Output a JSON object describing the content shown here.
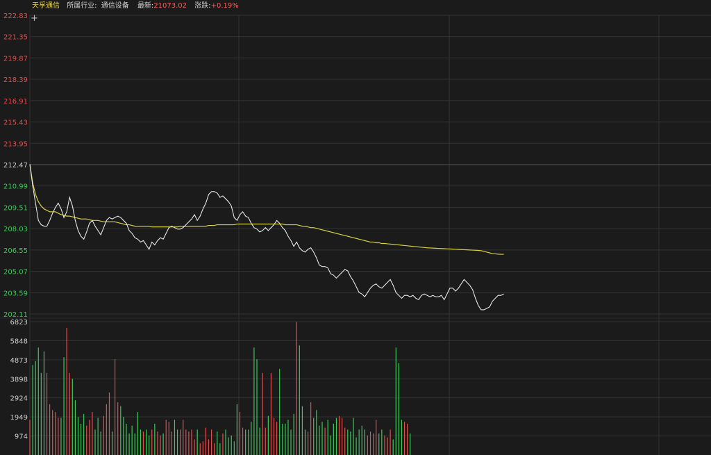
{
  "header": {
    "stock_name": "天孚通信",
    "industry_label": "所属行业:",
    "industry_value": "通信设备",
    "latest_label": "最新:",
    "latest_value": "21073.02",
    "change_label": "涨跌:",
    "change_value": "+0.19%"
  },
  "colors": {
    "background": "#1b1b1b",
    "grid": "#333333",
    "price_line": "#e8e8e8",
    "avg_line": "#d8d23a",
    "up": "#e05050",
    "down": "#3fc85c",
    "neutral_text": "#cfcfcf",
    "name_text": "#e8d44a"
  },
  "chart_data": [
    {
      "type": "line",
      "name": "intraday-price",
      "y_ticks": [
        "222.83",
        "221.35",
        "219.87",
        "218.39",
        "216.91",
        "215.43",
        "213.95",
        "212.47",
        "210.99",
        "209.51",
        "208.03",
        "206.55",
        "205.07",
        "203.59",
        "202.11"
      ],
      "ylim": [
        202.11,
        222.83
      ],
      "prev_close": 212.47,
      "x_count": 241,
      "series": [
        {
          "values": [
            212.5,
            211.0,
            209.8,
            208.6,
            208.3,
            208.2,
            208.2,
            208.6,
            209.1,
            209.5,
            209.8,
            209.4,
            208.8,
            209.2,
            210.2,
            209.6,
            208.6,
            207.9,
            207.5,
            207.3,
            207.8,
            208.4,
            208.6,
            208.2,
            207.9,
            207.6,
            208.1,
            208.6,
            208.8,
            208.7,
            208.8,
            208.9,
            208.8,
            208.6,
            208.4,
            207.9,
            207.7,
            207.4,
            207.3,
            207.1,
            207.2,
            206.9,
            206.6,
            207.1,
            206.9,
            207.2,
            207.4,
            207.3,
            207.7,
            208.1,
            208.2,
            208.1,
            208.0,
            208.0,
            208.1,
            208.3,
            208.5,
            208.7,
            209.0,
            208.6,
            208.9,
            209.4,
            209.8,
            210.4,
            210.6,
            210.6,
            210.5,
            210.2,
            210.3,
            210.1,
            209.9,
            209.6,
            208.8,
            208.6,
            209.0,
            209.2,
            208.9,
            208.8,
            208.4,
            208.1,
            208.0,
            207.8,
            207.9,
            208.1,
            207.9,
            208.1,
            208.3,
            208.6,
            208.4,
            208.1,
            207.9,
            207.5,
            207.2,
            206.8,
            207.1,
            206.7,
            206.5,
            206.4,
            206.6,
            206.7,
            206.4,
            206.0,
            205.5,
            205.4,
            205.4,
            205.3,
            204.9,
            204.8,
            204.6,
            204.8,
            205.0,
            205.2,
            205.1,
            204.7,
            204.4,
            204.0,
            203.6,
            203.5,
            203.3,
            203.6,
            203.9,
            204.1,
            204.2,
            204.0,
            203.9,
            204.1,
            204.3,
            204.5,
            204.1,
            203.6,
            203.4,
            203.2,
            203.4,
            203.4,
            203.3,
            203.4,
            203.2,
            203.1,
            203.4,
            203.5,
            203.4,
            203.3,
            203.4,
            203.3,
            203.3,
            203.4,
            203.1,
            203.5,
            203.9,
            203.9,
            203.7,
            203.9,
            204.2,
            204.5,
            204.3,
            204.1,
            203.8,
            203.2,
            202.7,
            202.4,
            202.4,
            202.5,
            202.6,
            203.0,
            203.2,
            203.4,
            203.4,
            203.5
          ]
        },
        {
          "values": [
            212.5,
            211.2,
            210.4,
            209.9,
            209.6,
            209.4,
            209.3,
            209.2,
            209.2,
            209.2,
            209.1,
            209.0,
            208.95,
            208.9,
            208.9,
            208.85,
            208.8,
            208.75,
            208.7,
            208.7,
            208.7,
            208.65,
            208.6,
            208.6,
            208.6,
            208.55,
            208.5,
            208.5,
            208.5,
            208.5,
            208.5,
            208.45,
            208.4,
            208.35,
            208.3,
            208.3,
            208.25,
            208.2,
            208.2,
            208.2,
            208.2,
            208.2,
            208.2,
            208.15,
            208.15,
            208.15,
            208.15,
            208.15,
            208.15,
            208.15,
            208.15,
            208.15,
            208.15,
            208.2,
            208.2,
            208.2,
            208.2,
            208.2,
            208.2,
            208.2,
            208.2,
            208.2,
            208.2,
            208.25,
            208.25,
            208.25,
            208.3,
            208.3,
            208.3,
            208.3,
            208.3,
            208.3,
            208.3,
            208.35,
            208.35,
            208.35,
            208.35,
            208.35,
            208.35,
            208.35,
            208.35,
            208.35,
            208.35,
            208.35,
            208.35,
            208.35,
            208.35,
            208.35,
            208.35,
            208.35,
            208.3,
            208.3,
            208.3,
            208.3,
            208.3,
            208.25,
            208.2,
            208.2,
            208.15,
            208.1,
            208.1,
            208.05,
            208.0,
            207.95,
            207.9,
            207.85,
            207.8,
            207.75,
            207.7,
            207.65,
            207.6,
            207.55,
            207.5,
            207.45,
            207.4,
            207.35,
            207.3,
            207.25,
            207.2,
            207.15,
            207.1,
            207.1,
            207.05,
            207.05,
            207.0,
            207.0,
            206.98,
            206.96,
            206.94,
            206.92,
            206.9,
            206.88,
            206.86,
            206.84,
            206.82,
            206.8,
            206.78,
            206.76,
            206.74,
            206.72,
            206.7,
            206.69,
            206.68,
            206.67,
            206.66,
            206.65,
            206.64,
            206.63,
            206.62,
            206.61,
            206.6,
            206.59,
            206.58,
            206.57,
            206.56,
            206.55,
            206.54,
            206.53,
            206.52,
            206.5,
            206.45,
            206.4,
            206.35,
            206.3,
            206.28,
            206.26,
            206.25,
            206.25
          ]
        }
      ]
    },
    {
      "type": "bar",
      "name": "volume",
      "y_ticks": [
        "6823",
        "5848",
        "4873",
        "3898",
        "2924",
        "1949",
        "974"
      ],
      "ylim": [
        0,
        6823
      ],
      "x_count": 241,
      "values": [
        1800,
        4600,
        4800,
        5500,
        4200,
        5300,
        4200,
        2600,
        2300,
        2200,
        1900,
        1900,
        5000,
        6500,
        4200,
        3900,
        2800,
        1950,
        1600,
        2100,
        1500,
        1800,
        2200,
        1300,
        1900,
        1200,
        2000,
        2600,
        3200,
        1200,
        4900,
        2700,
        2500,
        1950,
        1600,
        1100,
        1500,
        1100,
        2200,
        1300,
        1200,
        1300,
        1000,
        1300,
        1600,
        1200,
        1000,
        1100,
        1800,
        1700,
        1200,
        1800,
        1300,
        1300,
        1800,
        1300,
        1200,
        1300,
        800,
        1300,
        600,
        700,
        1400,
        800,
        1300,
        600,
        1200,
        600,
        1100,
        1300,
        900,
        1000,
        700,
        2600,
        2200,
        1400,
        1300,
        1300,
        1700,
        5500,
        4900,
        1400,
        4200,
        1400,
        2000,
        4200,
        1900,
        1700,
        4400,
        1600,
        1600,
        1800,
        1300,
        2100,
        6800,
        5600,
        2500,
        1300,
        1200,
        2700,
        1900,
        2300,
        1500,
        1700,
        1400,
        1800,
        1000,
        1600,
        1900,
        2000,
        1900,
        1400,
        1300,
        1200,
        1900,
        900,
        1300,
        1500,
        1300,
        1000,
        1200,
        1100,
        1800,
        1100,
        1300,
        1000,
        900,
        1300,
        800,
        5500,
        4700,
        1800,
        1700,
        1600,
        1100
      ]
    }
  ]
}
